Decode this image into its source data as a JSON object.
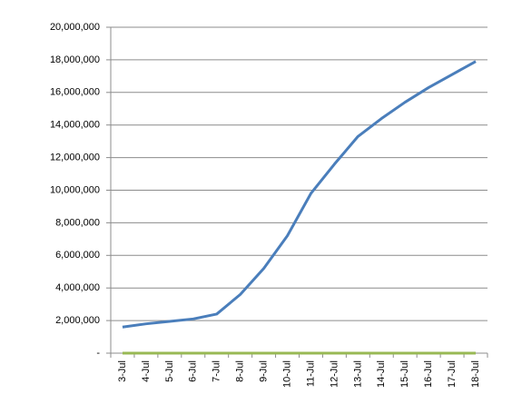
{
  "chart_data": {
    "type": "line",
    "categories": [
      "3-Jul",
      "4-Jul",
      "5-Jul",
      "6-Jul",
      "7-Jul",
      "8-Jul",
      "9-Jul",
      "10-Jul",
      "11-Jul",
      "12-Jul",
      "13-Jul",
      "14-Jul",
      "15-Jul",
      "16-Jul",
      "17-Jul",
      "18-Jul"
    ],
    "series": [
      {
        "color": "#4a7ebb",
        "values": [
          1600000,
          1800000,
          1950000,
          2100000,
          2400000,
          3600000,
          5200000,
          7200000,
          9800000,
          11600000,
          13300000,
          14400000,
          15400000,
          16300000,
          17100000,
          17900000
        ]
      },
      {
        "color": "#98b954",
        "values": [
          0,
          0,
          0,
          0,
          0,
          0,
          0,
          0,
          0,
          0,
          0,
          0,
          0,
          0,
          0,
          0
        ]
      }
    ],
    "ylim": [
      0,
      20000000
    ],
    "yticks": [
      {
        "value": 0,
        "label": "-"
      },
      {
        "value": 2000000,
        "label": "2,000,000"
      },
      {
        "value": 4000000,
        "label": "4,000,000"
      },
      {
        "value": 6000000,
        "label": "6,000,000"
      },
      {
        "value": 8000000,
        "label": "8,000,000"
      },
      {
        "value": 10000000,
        "label": "10,000,000"
      },
      {
        "value": 12000000,
        "label": "12,000,000"
      },
      {
        "value": 14000000,
        "label": "14,000,000"
      },
      {
        "value": 16000000,
        "label": "16,000,000"
      },
      {
        "value": 18000000,
        "label": "18,000,000"
      },
      {
        "value": 20000000,
        "label": "20,000,000"
      }
    ],
    "grid": true
  }
}
